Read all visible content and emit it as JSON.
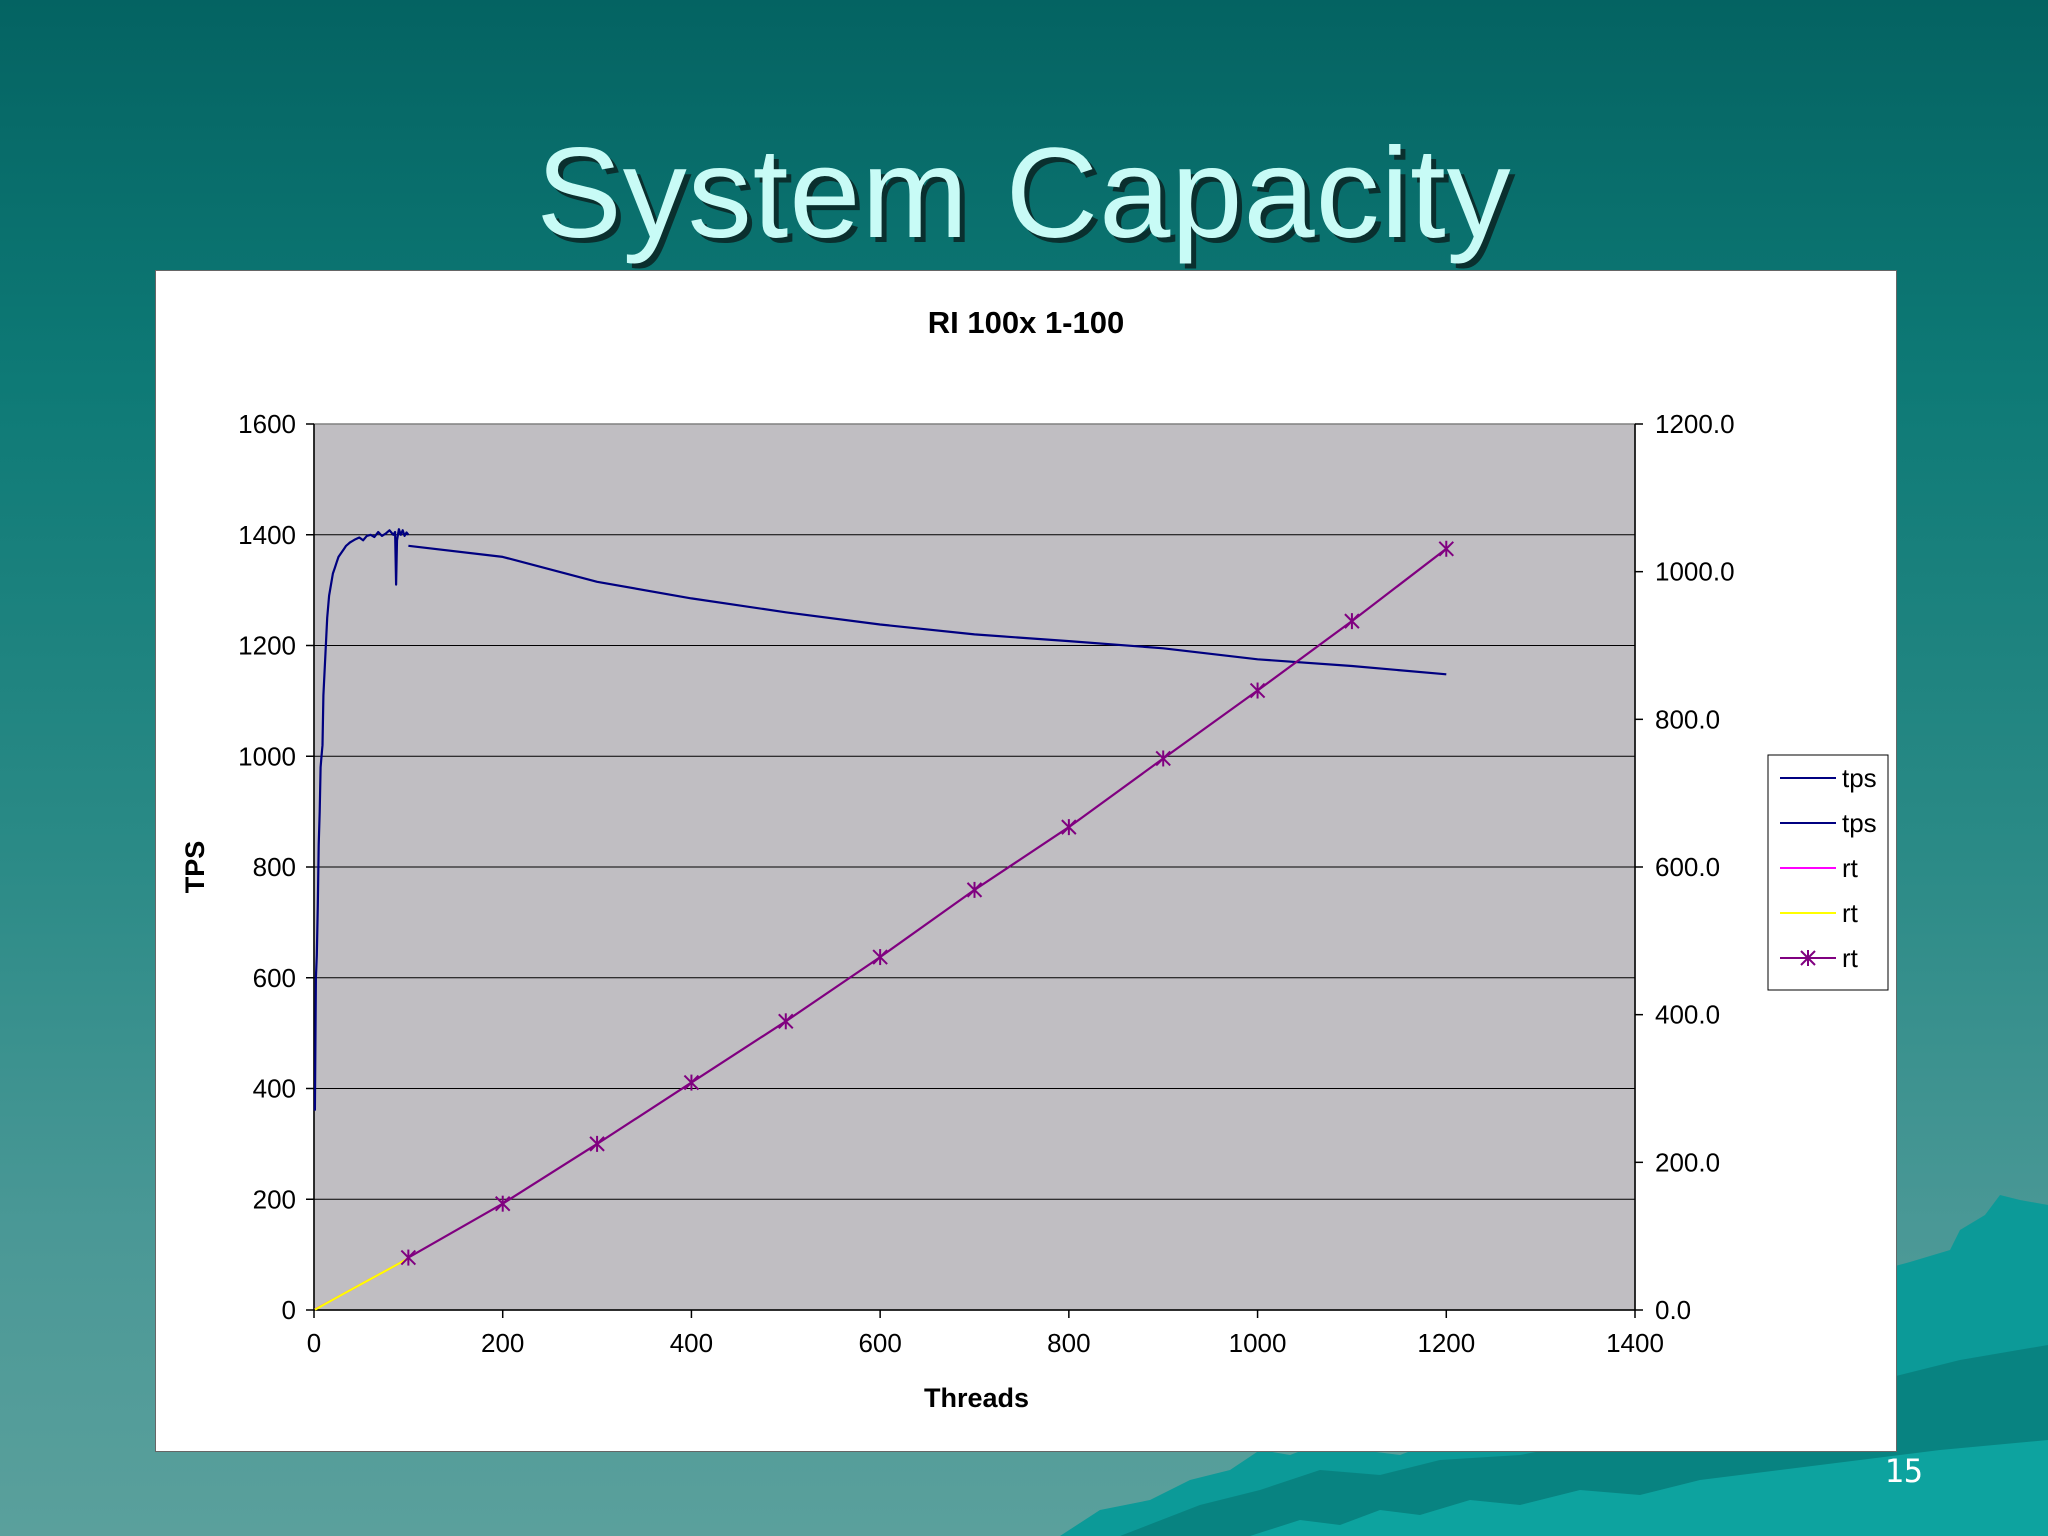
{
  "slide": {
    "title": "System Capacity",
    "page_number": "15"
  },
  "colors": {
    "background_top": "#046362",
    "background_bottom": "#5aa09c",
    "title_text": "#c8fbf6",
    "plot_area": "#c0bec2",
    "tps": "#000080",
    "rt_magenta": "#ff00ff",
    "rt_yellow": "#ffff00",
    "rt_markers": "#800080"
  },
  "chart_data": {
    "type": "line",
    "title": "RI 100x 1-100",
    "xlabel": "Threads",
    "ylabel": "TPS",
    "y2label": "",
    "xlim": [
      0,
      1400
    ],
    "ylim": [
      0,
      1600
    ],
    "y2lim": [
      0,
      1200
    ],
    "xticks": [
      "0",
      "200",
      "400",
      "600",
      "800",
      "1000",
      "1200",
      "1400"
    ],
    "yticks": [
      "0",
      "200",
      "400",
      "600",
      "800",
      "1000",
      "1200",
      "1400",
      "1600"
    ],
    "y2ticks": [
      "0.0",
      "200.0",
      "400.0",
      "600.0",
      "800.0",
      "1000.0",
      "1200.0"
    ],
    "grid": true,
    "legend_position": "right",
    "legend": [
      "tps",
      "tps",
      "rt",
      "rt",
      "rt"
    ],
    "series": [
      {
        "name": "tps",
        "axis": "left",
        "color": "#000080",
        "marker": "none",
        "points": [
          [
            1,
            360
          ],
          [
            2,
            600
          ],
          [
            3,
            640
          ],
          [
            4,
            730
          ],
          [
            5,
            840
          ],
          [
            6,
            900
          ],
          [
            7,
            980
          ],
          [
            8,
            1000
          ],
          [
            9,
            1020
          ],
          [
            10,
            1110
          ],
          [
            12,
            1180
          ],
          [
            14,
            1250
          ],
          [
            16,
            1290
          ],
          [
            18,
            1310
          ],
          [
            20,
            1330
          ],
          [
            22,
            1340
          ],
          [
            24,
            1350
          ],
          [
            26,
            1360
          ],
          [
            28,
            1365
          ],
          [
            30,
            1370
          ],
          [
            32,
            1375
          ],
          [
            34,
            1380
          ],
          [
            36,
            1383
          ],
          [
            38,
            1386
          ],
          [
            40,
            1388
          ],
          [
            44,
            1392
          ],
          [
            48,
            1395
          ],
          [
            52,
            1390
          ],
          [
            56,
            1398
          ],
          [
            60,
            1400
          ],
          [
            64,
            1396
          ],
          [
            68,
            1405
          ],
          [
            72,
            1398
          ],
          [
            76,
            1402
          ],
          [
            80,
            1408
          ],
          [
            84,
            1400
          ],
          [
            86,
            1405
          ],
          [
            87,
            1310
          ],
          [
            88,
            1390
          ],
          [
            90,
            1410
          ],
          [
            92,
            1400
          ],
          [
            94,
            1408
          ],
          [
            96,
            1398
          ],
          [
            98,
            1404
          ],
          [
            100,
            1400
          ]
        ]
      },
      {
        "name": "tps",
        "axis": "left",
        "color": "#000080",
        "marker": "none",
        "points": [
          [
            100,
            1380
          ],
          [
            200,
            1360
          ],
          [
            300,
            1315
          ],
          [
            400,
            1285
          ],
          [
            500,
            1260
          ],
          [
            600,
            1238
          ],
          [
            700,
            1220
          ],
          [
            800,
            1208
          ],
          [
            900,
            1195
          ],
          [
            1000,
            1175
          ],
          [
            1100,
            1163
          ],
          [
            1200,
            1148
          ]
        ]
      },
      {
        "name": "rt",
        "axis": "right",
        "color": "#ff00ff",
        "marker": "none",
        "points": [
          [
            1,
            0.8
          ],
          [
            20,
            14
          ],
          [
            40,
            28
          ],
          [
            60,
            42
          ],
          [
            80,
            56
          ],
          [
            100,
            70
          ]
        ]
      },
      {
        "name": "rt",
        "axis": "right",
        "color": "#ffff00",
        "marker": "none",
        "points": [
          [
            1,
            0.5
          ],
          [
            20,
            14
          ],
          [
            40,
            28
          ],
          [
            60,
            42
          ],
          [
            80,
            56
          ],
          [
            100,
            70
          ]
        ]
      },
      {
        "name": "rt",
        "axis": "right",
        "color": "#800080",
        "marker": "star",
        "points": [
          [
            100,
            71
          ],
          [
            200,
            144
          ],
          [
            300,
            225
          ],
          [
            400,
            308
          ],
          [
            500,
            391
          ],
          [
            600,
            478
          ],
          [
            700,
            569
          ],
          [
            800,
            654
          ],
          [
            900,
            747
          ],
          [
            1000,
            839
          ],
          [
            1100,
            933
          ],
          [
            1200,
            1031
          ]
        ]
      }
    ]
  }
}
